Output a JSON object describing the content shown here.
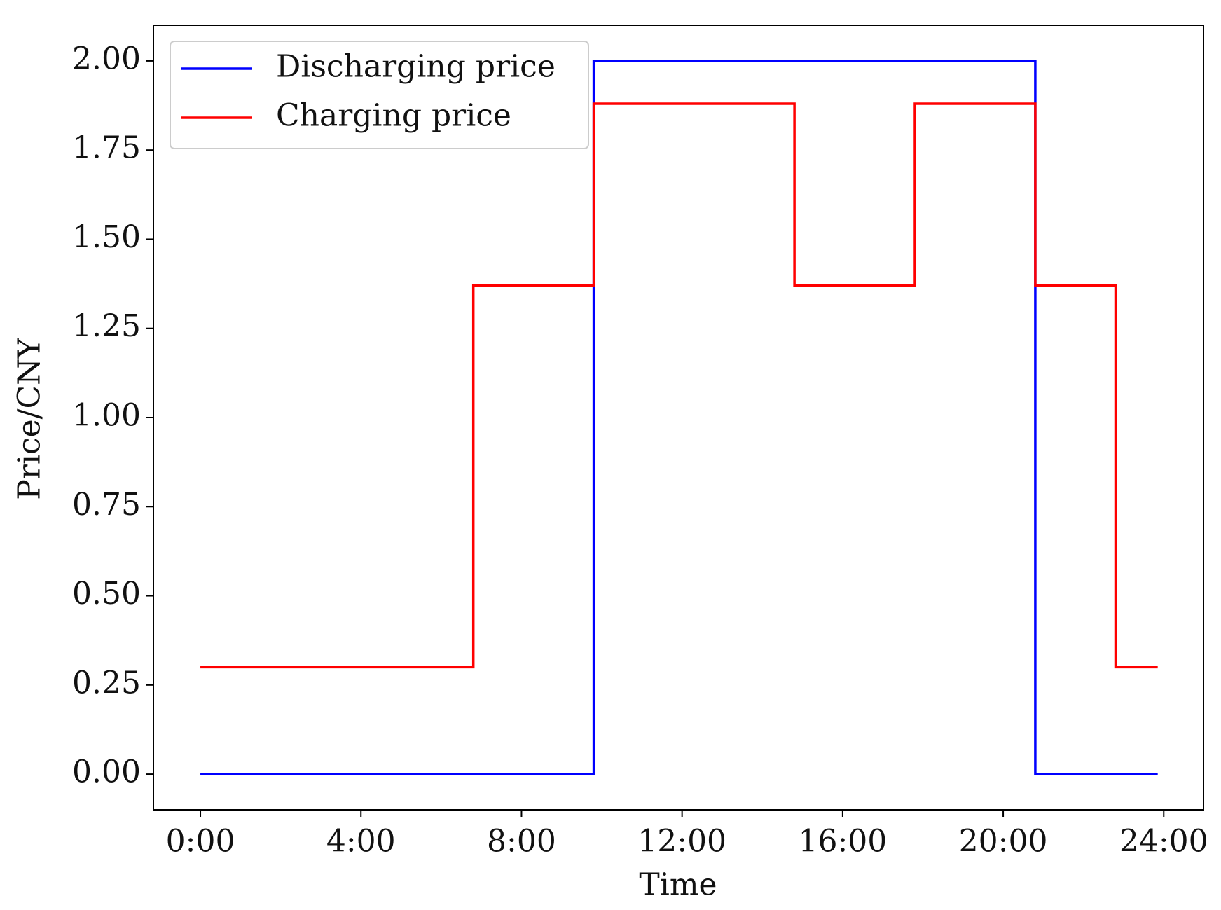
{
  "chart_data": {
    "type": "line",
    "step": "post",
    "x_label": "Time",
    "y_label": "Price/CNY",
    "x": [
      0,
      6.8,
      9.8,
      14.8,
      17.8,
      20.8,
      22.8,
      23.85
    ],
    "series": [
      {
        "name": "Discharging price",
        "color": "#0000ff",
        "values": [
          0,
          0,
          2.0,
          2.0,
          2.0,
          0,
          0,
          0
        ]
      },
      {
        "name": "Charging price",
        "color": "#ff0000",
        "values": [
          0.3,
          1.37,
          1.88,
          1.37,
          1.88,
          1.37,
          0.3,
          0.3
        ]
      }
    ],
    "xlim": [
      -1.17,
      24.99
    ],
    "ylim": [
      -0.1,
      2.1
    ],
    "xticks": [
      {
        "value": 0,
        "label": "0:00"
      },
      {
        "value": 4,
        "label": "4:00"
      },
      {
        "value": 8,
        "label": "8:00"
      },
      {
        "value": 12,
        "label": "12:00"
      },
      {
        "value": 16,
        "label": "16:00"
      },
      {
        "value": 20,
        "label": "20:00"
      },
      {
        "value": 24,
        "label": "24:00"
      }
    ],
    "yticks": [
      {
        "value": 0,
        "label": "0.00"
      },
      {
        "value": 0.25,
        "label": "0.25"
      },
      {
        "value": 0.5,
        "label": "0.50"
      },
      {
        "value": 0.75,
        "label": "0.75"
      },
      {
        "value": 1.0,
        "label": "1.00"
      },
      {
        "value": 1.25,
        "label": "1.25"
      },
      {
        "value": 1.5,
        "label": "1.50"
      },
      {
        "value": 1.75,
        "label": "1.75"
      },
      {
        "value": 2.0,
        "label": "2.00"
      }
    ],
    "grid": false,
    "legend": "upper left"
  }
}
